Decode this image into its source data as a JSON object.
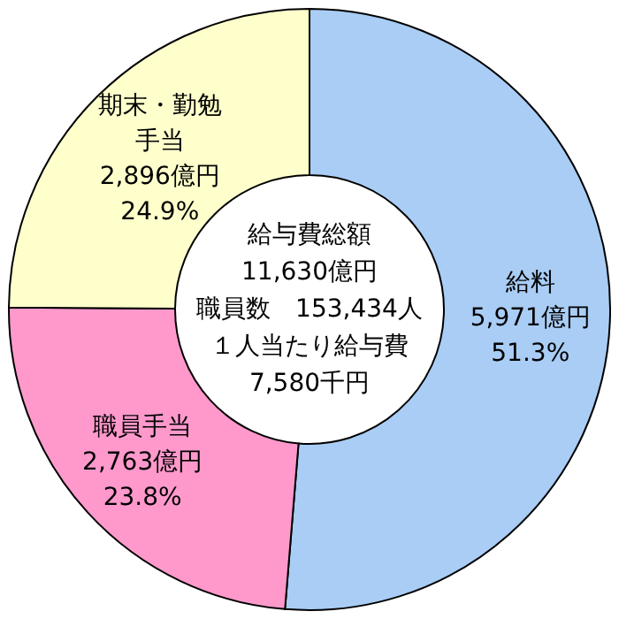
{
  "chart_data": {
    "type": "donut",
    "categories": [
      "給料",
      "職員手当",
      "期末・勤勉手当"
    ],
    "values": [
      51.3,
      23.8,
      24.9
    ],
    "colors": [
      "#a9cdf5",
      "#ff99cc",
      "#ffffcc"
    ],
    "value_labels": [
      "5,971億円\n51.3%",
      "2,763億円\n23.8%",
      "2,896億円\n24.9%"
    ],
    "annotations": [
      "給与費総額",
      "11,630億円",
      "職員数　153,434人",
      "１人当たり給与費",
      "7,580千円"
    ]
  }
}
